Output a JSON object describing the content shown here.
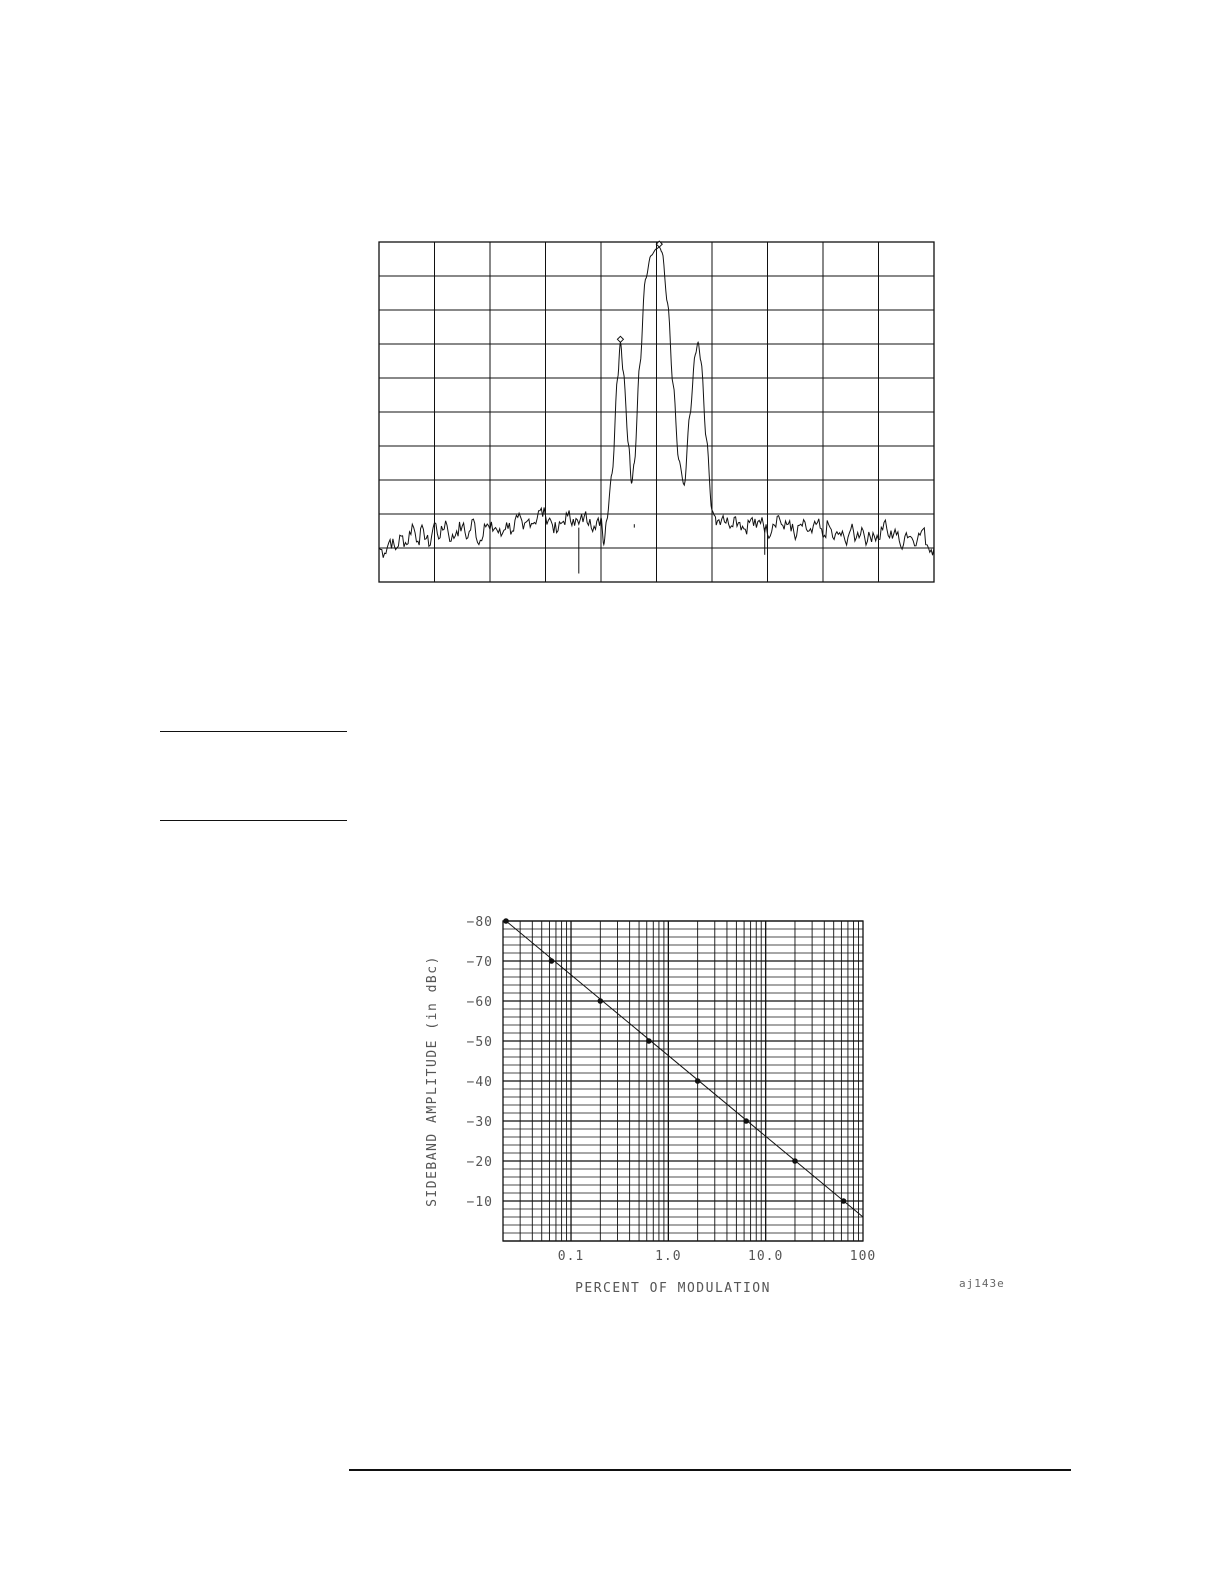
{
  "chart_data": [
    {
      "type": "line",
      "title": "",
      "xlabel": "",
      "ylabel": "",
      "grid": true,
      "grid_divisions": {
        "x": 10,
        "y": 10
      },
      "xlim": [
        0,
        10
      ],
      "ylim": [
        0,
        10
      ],
      "description_units": "screen divisions",
      "peaks": [
        {
          "x": 4.35,
          "y": 7.05,
          "marker": "diamond"
        },
        {
          "x": 5.05,
          "y": 9.85,
          "marker": "diamond"
        },
        {
          "x": 5.75,
          "y": 7.05,
          "marker": null
        }
      ],
      "noise_floor_level": 1.0,
      "series": [
        {
          "x": [
            0,
            0.1,
            0.2,
            0.3,
            0.4,
            0.5,
            0.6,
            0.7,
            0.8,
            0.9,
            1.0,
            1.1,
            1.2,
            1.3,
            1.4,
            1.5,
            1.6,
            1.7,
            1.8,
            1.9,
            2.0,
            2.1,
            2.2,
            2.3,
            2.4,
            2.5,
            2.6,
            2.7,
            2.8,
            2.9,
            3.0,
            3.1,
            3.2,
            3.3,
            3.4,
            3.5,
            3.6,
            3.7,
            3.8,
            3.9,
            4.0,
            4.05,
            4.1,
            4.2,
            4.3,
            4.35,
            4.4,
            4.5,
            4.55,
            4.6,
            4.7,
            4.8,
            4.9,
            5.0,
            5.05,
            5.1,
            5.2,
            5.3,
            5.4,
            5.5,
            5.6,
            5.7,
            5.75,
            5.8,
            5.9,
            6.0,
            6.05,
            6.1,
            6.2,
            6.3,
            6.4,
            6.5,
            6.6,
            6.7,
            6.8,
            6.9,
            7.0,
            7.1,
            7.2,
            7.3,
            7.4,
            7.5,
            7.6,
            7.7,
            7.8,
            7.9,
            8.0,
            8.1,
            8.2,
            8.3,
            8.4,
            8.5,
            8.6,
            8.7,
            8.8,
            8.9,
            9.0,
            9.1,
            9.2,
            9.3,
            9.4,
            9.5,
            9.6,
            9.7,
            9.8,
            9.9,
            10.0
          ],
          "values": [
            1.0,
            0.85,
            1.25,
            0.95,
            1.35,
            1.1,
            1.7,
            1.2,
            1.55,
            1.05,
            1.75,
            1.3,
            1.8,
            1.2,
            1.5,
            1.65,
            1.3,
            1.85,
            1.1,
            1.7,
            1.55,
            1.6,
            1.35,
            1.75,
            1.5,
            1.9,
            1.55,
            1.85,
            1.75,
            2.1,
            1.95,
            1.8,
            1.45,
            1.75,
            1.95,
            1.85,
            1.7,
            1.95,
            1.85,
            1.55,
            1.9,
            1.1,
            1.8,
            3.2,
            6.0,
            7.05,
            6.2,
            4.0,
            2.9,
            3.5,
            6.4,
            8.9,
            9.6,
            9.8,
            9.85,
            9.7,
            8.2,
            5.8,
            3.6,
            2.85,
            4.9,
            6.7,
            7.05,
            6.5,
            4.2,
            2.1,
            1.95,
            1.8,
            1.95,
            1.7,
            1.9,
            1.75,
            1.55,
            1.85,
            1.6,
            1.9,
            1.4,
            1.7,
            1.95,
            1.55,
            1.8,
            1.25,
            1.7,
            1.55,
            1.45,
            1.75,
            1.3,
            1.7,
            1.25,
            1.45,
            1.2,
            1.55,
            1.3,
            1.6,
            1.2,
            1.45,
            1.25,
            1.75,
            1.3,
            1.55,
            1.05,
            1.45,
            1.3,
            1.25,
            1.55,
            1.0,
            1.0
          ]
        }
      ]
    },
    {
      "type": "line",
      "title": "",
      "xlabel": "PERCENT OF MODULATION",
      "ylabel": "SIDEBAND AMPLITUDE (in dBc)",
      "x_scale": "log",
      "xlim": [
        0.02,
        100
      ],
      "ylim": [
        -80,
        0
      ],
      "grid": true,
      "x_tick_labels": [
        "0.1",
        "1.0",
        "10.0",
        "100"
      ],
      "x_ticks": [
        0.1,
        1,
        10,
        100
      ],
      "y_tick_labels": [
        "-80",
        "-70",
        "-60",
        "-50",
        "-40",
        "-30",
        "-20",
        "-10"
      ],
      "y_ticks": [
        -80,
        -70,
        -60,
        -50,
        -40,
        -30,
        -20,
        -10
      ],
      "series": [
        {
          "x": [
            0.02,
            0.063,
            0.2,
            0.63,
            2.0,
            6.3,
            20,
            63
          ],
          "values": [
            -80,
            -70,
            -60,
            -50,
            -40,
            -30,
            -20,
            -10
          ]
        }
      ],
      "fit_line": {
        "x": [
          0.02,
          100
        ],
        "values": [
          -80,
          -6
        ]
      },
      "figure_ref": "aj143e"
    }
  ],
  "rules": [
    "top-short-1",
    "top-short-2",
    "footer"
  ]
}
